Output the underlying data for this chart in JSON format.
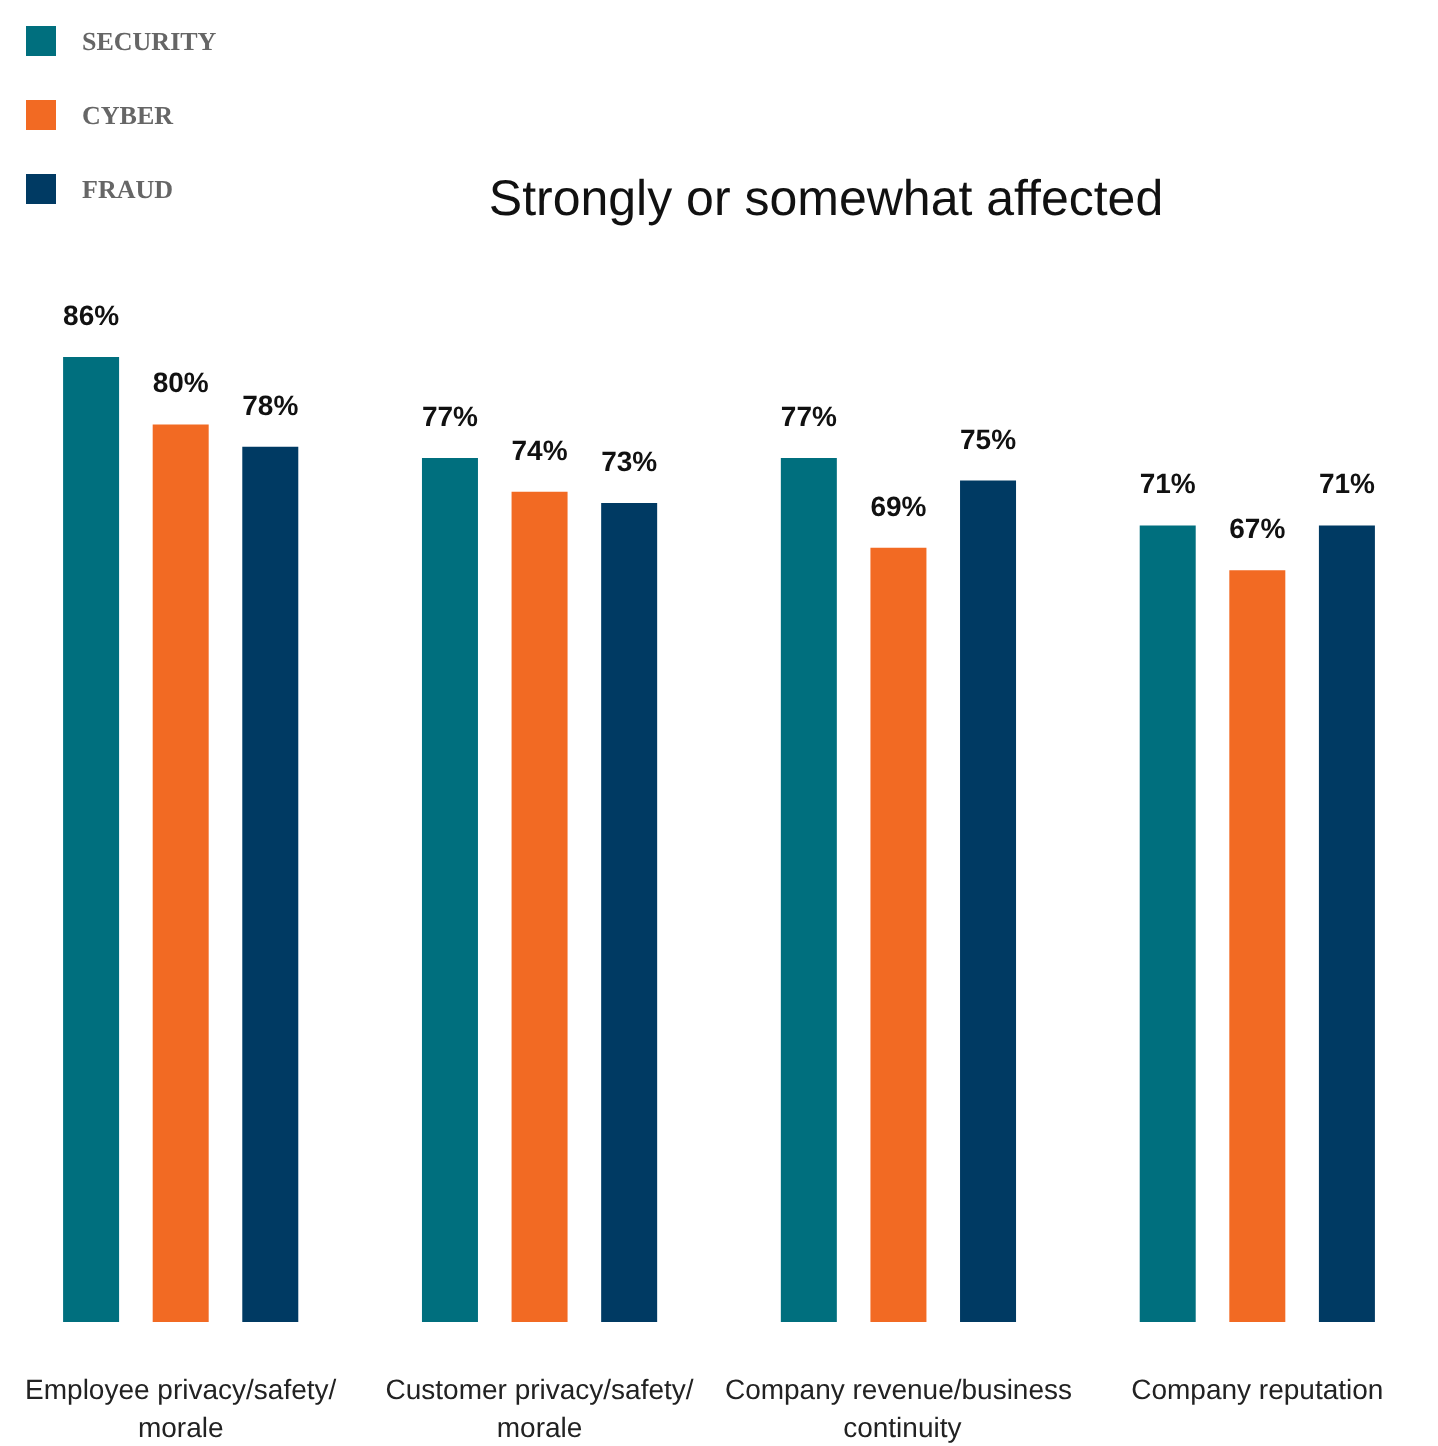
{
  "chart_data": {
    "type": "bar",
    "title": "Strongly or somewhat affected",
    "categories": [
      "Employee privacy/safety/morale",
      "Customer privacy/safety/morale",
      "Company revenue/business continuity",
      "Company reputation"
    ],
    "series": [
      {
        "name": "SECURITY",
        "color": "#006f7e",
        "values": [
          86,
          77,
          77,
          71
        ],
        "value_labels": [
          "86%",
          "77%",
          "77%",
          "71%"
        ]
      },
      {
        "name": "CYBER",
        "color": "#f26a23",
        "values": [
          80,
          74,
          69,
          67
        ],
        "value_labels": [
          "80%",
          "74%",
          "69%",
          "67%"
        ]
      },
      {
        "name": "FRAUD",
        "color": "#003a63",
        "values": [
          78,
          73,
          75,
          71
        ],
        "value_labels": [
          "78%",
          "73%",
          "75%",
          "71%"
        ]
      }
    ],
    "legend": "top left",
    "grid": false,
    "tick_labels": "x"
  }
}
